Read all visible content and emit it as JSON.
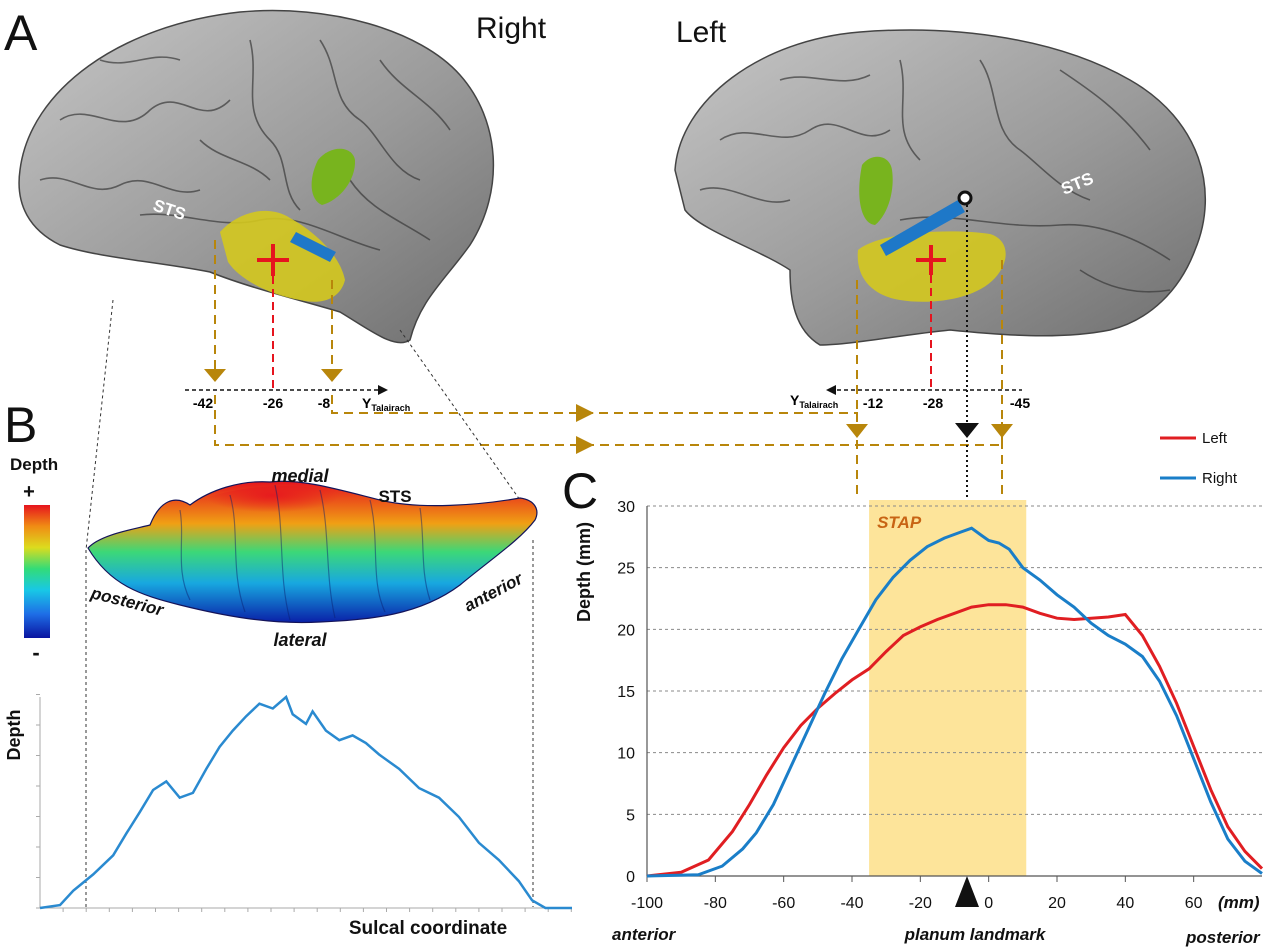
{
  "panels": {
    "a": "A",
    "b": "B",
    "c": "C"
  },
  "panel_a": {
    "hemi_right": "Right",
    "hemi_left": "Left",
    "sts_right": "STS",
    "sts_left": "STS",
    "axis_right": {
      "ticks": [
        "-42",
        "-26",
        "-8"
      ],
      "label": "Y",
      "label_sub": "Talairach"
    },
    "axis_left": {
      "ticks": [
        "-12",
        "-28",
        "-45"
      ],
      "label": "Y",
      "label_sub": "Talairach"
    }
  },
  "panel_b": {
    "depth_title": "Depth",
    "depth_plus": "+",
    "depth_minus": "-",
    "colorbar": [
      "#0a14a0",
      "#1e6ee6",
      "#18c8e6",
      "#32dc78",
      "#dcdc1e",
      "#f08c14",
      "#e6141e"
    ],
    "surf_medial": "medial",
    "surf_lateral": "lateral",
    "surf_posterior": "posterior",
    "surf_anterior": "anterior",
    "surf_sts": "STS",
    "profile_ylabel": "Depth",
    "profile_xlabel": "Sulcal coordinate",
    "profile_line_color": "#2a8ad0",
    "profile": [
      [
        0,
        0
      ],
      [
        3,
        0.3
      ],
      [
        5,
        1.8
      ],
      [
        8,
        3.5
      ],
      [
        11,
        5.5
      ],
      [
        13,
        7.8
      ],
      [
        15,
        10.0
      ],
      [
        17,
        12.3
      ],
      [
        19,
        13.2
      ],
      [
        21,
        11.5
      ],
      [
        23,
        12.0
      ],
      [
        25,
        14.5
      ],
      [
        27,
        16.8
      ],
      [
        29,
        18.5
      ],
      [
        31,
        20.0
      ],
      [
        33,
        21.3
      ],
      [
        35,
        20.8
      ],
      [
        37,
        22.0
      ],
      [
        38,
        20.2
      ],
      [
        40,
        19.2
      ],
      [
        41,
        20.5
      ],
      [
        43,
        18.5
      ],
      [
        45,
        17.5
      ],
      [
        47,
        18.0
      ],
      [
        49,
        17.2
      ],
      [
        51,
        16.0
      ],
      [
        54,
        14.5
      ],
      [
        57,
        12.5
      ],
      [
        60,
        11.5
      ],
      [
        63,
        9.5
      ],
      [
        66,
        6.8
      ],
      [
        69,
        5.0
      ],
      [
        72,
        2.8
      ],
      [
        74,
        0.8
      ],
      [
        76,
        0
      ],
      [
        80,
        0
      ]
    ]
  },
  "chart_data": {
    "type": "line",
    "title": "",
    "xlabel": "(mm)",
    "ylabel": "Depth (mm)",
    "xlim": [
      -100,
      80
    ],
    "ylim": [
      0,
      30
    ],
    "x_ticks": [
      -100,
      -80,
      -60,
      -40,
      -20,
      0,
      20,
      40,
      60
    ],
    "x_tick_labels": [
      "-100",
      "-80",
      "-60",
      "-40",
      "-20",
      "0",
      "20",
      "40",
      "60"
    ],
    "y_ticks": [
      0,
      5,
      10,
      15,
      20,
      25,
      30
    ],
    "y_tick_labels": [
      "0",
      "5",
      "10",
      "15",
      "20",
      "25",
      "30"
    ],
    "grid": "horizontal dashed",
    "legend": "top-right",
    "shaded_region": {
      "label": "STAP",
      "x0": -35,
      "x1": 11,
      "color": "#fde49a",
      "label_color": "#c86414"
    },
    "landmark_x": 0,
    "series": [
      {
        "name": "Left",
        "color": "#e01e22",
        "points": [
          [
            -100,
            0
          ],
          [
            -90,
            0.3
          ],
          [
            -82,
            1.3
          ],
          [
            -75,
            3.6
          ],
          [
            -70,
            5.8
          ],
          [
            -65,
            8.2
          ],
          [
            -60,
            10.4
          ],
          [
            -55,
            12.2
          ],
          [
            -50,
            13.6
          ],
          [
            -45,
            14.8
          ],
          [
            -40,
            15.9
          ],
          [
            -35,
            16.8
          ],
          [
            -30,
            18.2
          ],
          [
            -25,
            19.5
          ],
          [
            -20,
            20.2
          ],
          [
            -15,
            20.8
          ],
          [
            -10,
            21.3
          ],
          [
            -5,
            21.8
          ],
          [
            0,
            22.0
          ],
          [
            5,
            22.0
          ],
          [
            10,
            21.8
          ],
          [
            15,
            21.3
          ],
          [
            20,
            20.9
          ],
          [
            25,
            20.8
          ],
          [
            30,
            20.9
          ],
          [
            35,
            21.0
          ],
          [
            40,
            21.2
          ],
          [
            45,
            19.5
          ],
          [
            50,
            17.0
          ],
          [
            55,
            14.0
          ],
          [
            60,
            10.5
          ],
          [
            65,
            7.0
          ],
          [
            70,
            4.0
          ],
          [
            75,
            2.0
          ],
          [
            80,
            0.6
          ]
        ]
      },
      {
        "name": "Right",
        "color": "#1a7ec8",
        "points": [
          [
            -100,
            0
          ],
          [
            -85,
            0.1
          ],
          [
            -78,
            0.8
          ],
          [
            -72,
            2.2
          ],
          [
            -68,
            3.5
          ],
          [
            -63,
            5.8
          ],
          [
            -58,
            8.8
          ],
          [
            -53,
            11.8
          ],
          [
            -48,
            14.8
          ],
          [
            -43,
            17.6
          ],
          [
            -38,
            20.0
          ],
          [
            -33,
            22.4
          ],
          [
            -28,
            24.2
          ],
          [
            -23,
            25.6
          ],
          [
            -18,
            26.7
          ],
          [
            -13,
            27.4
          ],
          [
            -8,
            27.9
          ],
          [
            -5,
            28.2
          ],
          [
            -2,
            27.6
          ],
          [
            0,
            27.2
          ],
          [
            3,
            27.0
          ],
          [
            6,
            26.5
          ],
          [
            10,
            25.0
          ],
          [
            15,
            24.0
          ],
          [
            20,
            22.8
          ],
          [
            25,
            21.8
          ],
          [
            30,
            20.5
          ],
          [
            35,
            19.5
          ],
          [
            40,
            18.8
          ],
          [
            45,
            17.8
          ],
          [
            50,
            15.8
          ],
          [
            55,
            13.0
          ],
          [
            60,
            9.5
          ],
          [
            65,
            6.0
          ],
          [
            70,
            3.0
          ],
          [
            75,
            1.2
          ],
          [
            80,
            0.2
          ]
        ]
      }
    ],
    "annotations": {
      "anterior": "anterior",
      "posterior": "posterior",
      "landmark": "planum landmark",
      "unit": "(mm)"
    }
  }
}
